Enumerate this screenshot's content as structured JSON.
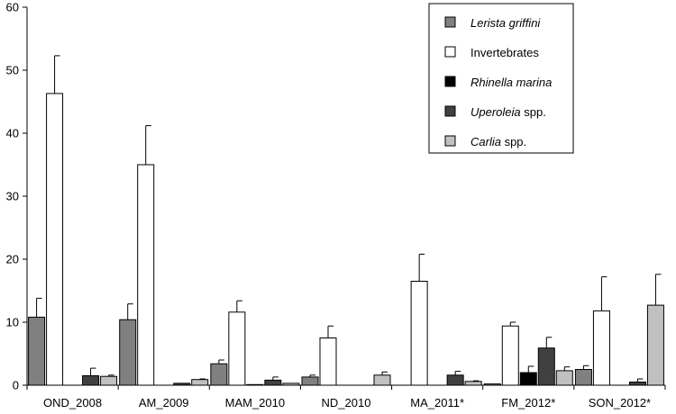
{
  "chart_data": {
    "type": "bar",
    "title": "",
    "xlabel": "",
    "ylabel": "",
    "ylim": [
      0,
      60
    ],
    "yticks": [
      0,
      10,
      20,
      30,
      40,
      50,
      60
    ],
    "grid": false,
    "legend_position": "top-right",
    "categories": [
      "OND_2008",
      "AM_2009",
      "MAM_2010",
      "ND_2010",
      "MA_2011*",
      "FM_2012*",
      "SON_2012*"
    ],
    "series": [
      {
        "name": "Lerista griffini",
        "name_main": "Lerista griffini",
        "name_suffix": "",
        "italic": true,
        "color": "#808080",
        "values": [
          10.8,
          10.4,
          3.4,
          1.3,
          0.0,
          0.2,
          2.5
        ],
        "errors": [
          3.0,
          2.5,
          0.6,
          0.3,
          0.0,
          0.0,
          0.6
        ]
      },
      {
        "name": "Invertebrates",
        "name_main": "Invertebrates",
        "name_suffix": "",
        "italic": false,
        "color": "#ffffff",
        "values": [
          46.3,
          35.0,
          11.6,
          7.5,
          16.5,
          9.4,
          11.8
        ],
        "errors": [
          6.0,
          6.2,
          1.8,
          1.9,
          4.3,
          0.6,
          5.4
        ]
      },
      {
        "name": "Rhinella marina",
        "name_main": "Rhinella marina",
        "name_suffix": "",
        "italic": true,
        "color": "#000000",
        "values": [
          0.0,
          0.0,
          0.1,
          0.0,
          0.0,
          2.0,
          0.0
        ],
        "errors": [
          0.0,
          0.0,
          0.0,
          0.0,
          0.0,
          1.0,
          0.0
        ]
      },
      {
        "name": "Uperoleia spp.",
        "name_main": "Uperoleia",
        "name_suffix": " spp.",
        "italic": true,
        "color": "#404040",
        "values": [
          1.5,
          0.3,
          0.8,
          0.0,
          1.6,
          5.9,
          0.5
        ],
        "errors": [
          1.2,
          0.0,
          0.5,
          0.0,
          0.6,
          1.7,
          0.5
        ]
      },
      {
        "name": "Carlia spp.",
        "name_main": "Carlia",
        "name_suffix": " spp.",
        "italic": true,
        "color": "#c0c0c0",
        "values": [
          1.4,
          0.9,
          0.3,
          1.6,
          0.6,
          2.3,
          12.7
        ],
        "errors": [
          0.2,
          0.1,
          0.0,
          0.5,
          0.1,
          0.6,
          4.9
        ]
      }
    ]
  }
}
